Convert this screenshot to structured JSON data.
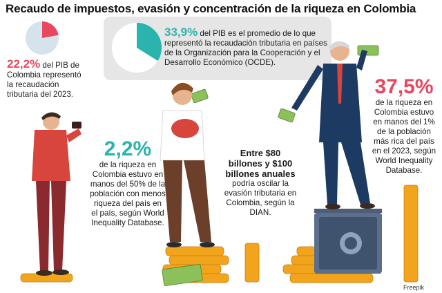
{
  "title": "Recaudo de impuestos, evasión y concentración de la riqueza en Colombia",
  "stats": {
    "gdp_2023": {
      "value": "22,2%",
      "text": " del PIB de Colombia representó la recaudación tributaria del 2023.",
      "pie_fraction": 0.222
    },
    "oecd": {
      "value": "33,9%",
      "text": " del PIB es el promedio de lo que representó la recaudación tributaria en países de la Organización para la Cooperación y el Desarrollo Económico (OCDE).",
      "pie_fraction": 0.339
    },
    "bottom50": {
      "value": "2,2%",
      "text": "de la riqueza en Colombia estuvo en manos del 50% de la población con menos riqueza del país en el país, según World Inequality Database."
    },
    "evasion": {
      "headline": "Entre $80 billones y $100 billones anuales",
      "text": "podría oscilar la evasión tributaria en Colombia, según la DIAN."
    },
    "top1": {
      "value": "37,5%",
      "text": "de la riqueza en Colombia estuvo en manos del 1% de la población más rica del país en el 2023, según World Inequality Database."
    }
  },
  "credit": "Freepik",
  "colors": {
    "teal": "#2bb3ad",
    "red": "#e8475f",
    "gold": "#f2a51c",
    "pie_base": "#d6e3ec"
  }
}
